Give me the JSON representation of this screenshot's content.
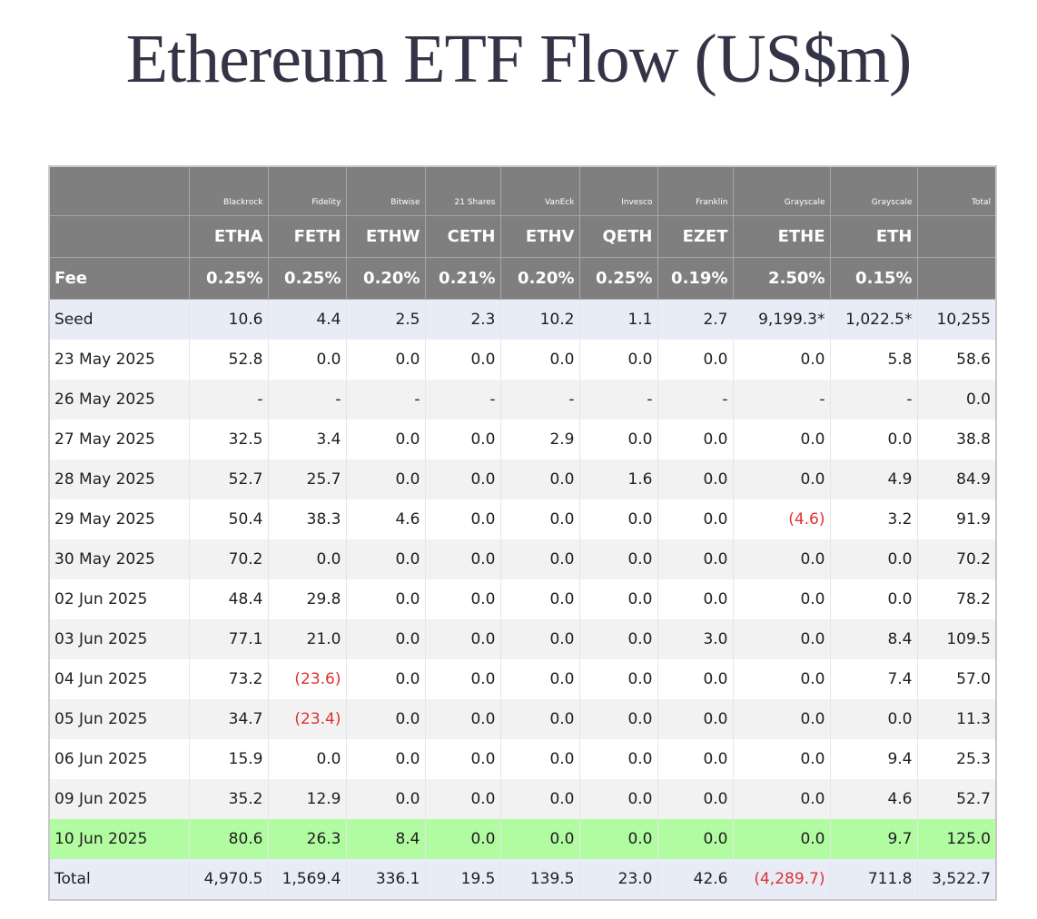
{
  "title": "Ethereum ETF Flow (US$m)",
  "chart_data": {
    "type": "table",
    "title": "Ethereum ETF Flow (US$m)",
    "issuers": [
      "Blackrock",
      "Fidelity",
      "Bitwise",
      "21 Shares",
      "VanEck",
      "Invesco",
      "Franklin",
      "Grayscale",
      "Grayscale"
    ],
    "tickers": [
      "ETHA",
      "FETH",
      "ETHW",
      "CETH",
      "ETHV",
      "QETH",
      "EZET",
      "ETHE",
      "ETH"
    ],
    "total_label": "Total",
    "fee_label": "Fee",
    "fees": [
      "0.25%",
      "0.25%",
      "0.20%",
      "0.21%",
      "0.20%",
      "0.25%",
      "0.19%",
      "2.50%",
      "0.15%"
    ],
    "rows": [
      {
        "label": "Seed",
        "values": [
          "10.6",
          "4.4",
          "2.5",
          "2.3",
          "10.2",
          "1.1",
          "2.7",
          "9,199.3*",
          "1,022.5*"
        ],
        "total": "10,255",
        "style": "seed"
      },
      {
        "label": "23 May 2025",
        "values": [
          "52.8",
          "0.0",
          "0.0",
          "0.0",
          "0.0",
          "0.0",
          "0.0",
          "0.0",
          "5.8"
        ],
        "total": "58.6",
        "style": "odd"
      },
      {
        "label": "26 May 2025",
        "values": [
          "-",
          "-",
          "-",
          "-",
          "-",
          "-",
          "-",
          "-",
          "-"
        ],
        "total": "0.0",
        "style": "even"
      },
      {
        "label": "27 May 2025",
        "values": [
          "32.5",
          "3.4",
          "0.0",
          "0.0",
          "2.9",
          "0.0",
          "0.0",
          "0.0",
          "0.0"
        ],
        "total": "38.8",
        "style": "odd"
      },
      {
        "label": "28 May 2025",
        "values": [
          "52.7",
          "25.7",
          "0.0",
          "0.0",
          "0.0",
          "1.6",
          "0.0",
          "0.0",
          "4.9"
        ],
        "total": "84.9",
        "style": "even"
      },
      {
        "label": "29 May 2025",
        "values": [
          "50.4",
          "38.3",
          "4.6",
          "0.0",
          "0.0",
          "0.0",
          "0.0",
          "(4.6)",
          "3.2"
        ],
        "total": "91.9",
        "style": "odd"
      },
      {
        "label": "30 May 2025",
        "values": [
          "70.2",
          "0.0",
          "0.0",
          "0.0",
          "0.0",
          "0.0",
          "0.0",
          "0.0",
          "0.0"
        ],
        "total": "70.2",
        "style": "even"
      },
      {
        "label": "02 Jun 2025",
        "values": [
          "48.4",
          "29.8",
          "0.0",
          "0.0",
          "0.0",
          "0.0",
          "0.0",
          "0.0",
          "0.0"
        ],
        "total": "78.2",
        "style": "odd"
      },
      {
        "label": "03 Jun 2025",
        "values": [
          "77.1",
          "21.0",
          "0.0",
          "0.0",
          "0.0",
          "0.0",
          "3.0",
          "0.0",
          "8.4"
        ],
        "total": "109.5",
        "style": "even"
      },
      {
        "label": "04 Jun 2025",
        "values": [
          "73.2",
          "(23.6)",
          "0.0",
          "0.0",
          "0.0",
          "0.0",
          "0.0",
          "0.0",
          "7.4"
        ],
        "total": "57.0",
        "style": "odd"
      },
      {
        "label": "05 Jun 2025",
        "values": [
          "34.7",
          "(23.4)",
          "0.0",
          "0.0",
          "0.0",
          "0.0",
          "0.0",
          "0.0",
          "0.0"
        ],
        "total": "11.3",
        "style": "even"
      },
      {
        "label": "06 Jun 2025",
        "values": [
          "15.9",
          "0.0",
          "0.0",
          "0.0",
          "0.0",
          "0.0",
          "0.0",
          "0.0",
          "9.4"
        ],
        "total": "25.3",
        "style": "odd"
      },
      {
        "label": "09 Jun 2025",
        "values": [
          "35.2",
          "12.9",
          "0.0",
          "0.0",
          "0.0",
          "0.0",
          "0.0",
          "0.0",
          "4.6"
        ],
        "total": "52.7",
        "style": "even"
      },
      {
        "label": "10 Jun 2025",
        "values": [
          "80.6",
          "26.3",
          "8.4",
          "0.0",
          "0.0",
          "0.0",
          "0.0",
          "0.0",
          "9.7"
        ],
        "total": "125.0",
        "style": "highlight"
      },
      {
        "label": "Total",
        "values": [
          "4,970.5",
          "1,569.4",
          "336.1",
          "19.5",
          "139.5",
          "23.0",
          "42.6",
          "(4,289.7)",
          "711.8"
        ],
        "total": "3,522.7",
        "style": "total-row"
      }
    ],
    "colors": {
      "header_bg": "#7f7f7f",
      "header_text": "#ffffff",
      "seed_bg": "#e8ecf7",
      "stripe_bg": "#f2f2f2",
      "highlight_bg": "#b1fca0",
      "negative_text": "#e03131"
    }
  }
}
